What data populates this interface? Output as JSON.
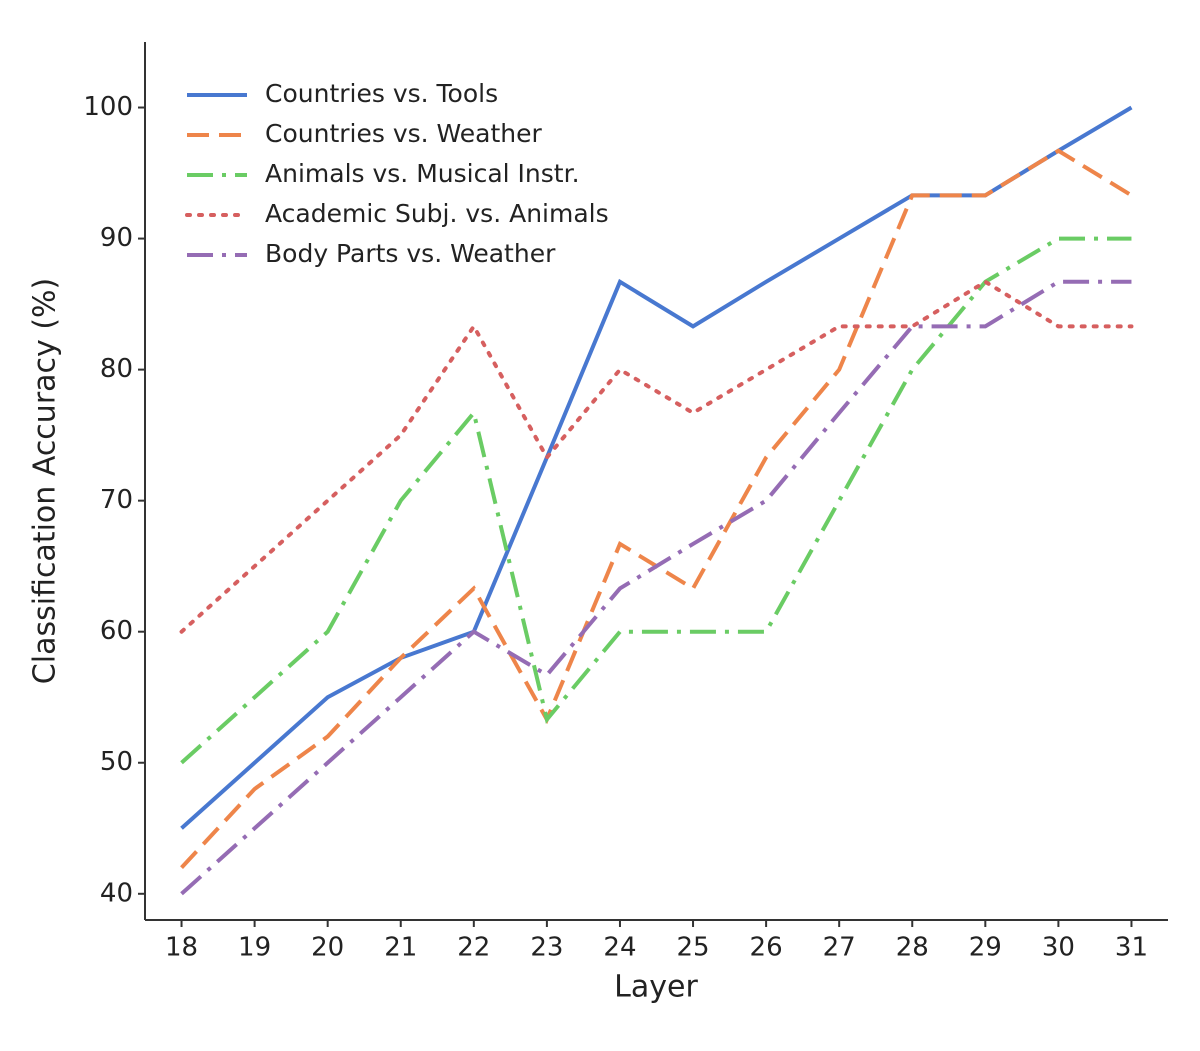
{
  "chart_data": {
    "type": "line",
    "xlabel": "Layer",
    "ylabel": "Classification Accuracy (%)",
    "x": [
      18,
      19,
      20,
      21,
      22,
      23,
      24,
      25,
      26,
      27,
      28,
      29,
      30,
      31
    ],
    "xlim": [
      17.5,
      31.5
    ],
    "xticks": [
      18,
      19,
      20,
      21,
      22,
      23,
      24,
      25,
      26,
      27,
      28,
      29,
      30,
      31
    ],
    "ylim": [
      38,
      105
    ],
    "yticks": [
      40,
      50,
      60,
      70,
      80,
      90,
      100
    ],
    "legend": "upper left",
    "series": [
      {
        "name": "Countries vs. Tools",
        "color": "#4878d0",
        "linestyle": "solid",
        "values": [
          45,
          50,
          55,
          58,
          60,
          73.3,
          86.7,
          83.3,
          86.7,
          90,
          93.3,
          93.3,
          96.7,
          100
        ]
      },
      {
        "name": "Countries vs. Weather",
        "color": "#ee854a",
        "linestyle": "dashed",
        "values": [
          42,
          48,
          52,
          58,
          63.3,
          53.3,
          66.7,
          63.3,
          73.3,
          80,
          93.3,
          93.3,
          96.7,
          93.3
        ]
      },
      {
        "name": "Animals vs. Musical Instr.",
        "color": "#6acc64",
        "linestyle": "dashdot",
        "values": [
          50,
          55,
          60,
          70,
          76.7,
          53.3,
          60,
          60,
          60,
          70,
          80,
          86.7,
          90,
          90
        ]
      },
      {
        "name": "Academic Subj. vs. Animals",
        "color": "#d65f5f",
        "linestyle": "dotted",
        "values": [
          60,
          65,
          70,
          75,
          83.3,
          73.3,
          80,
          76.7,
          80,
          83.3,
          83.3,
          86.7,
          83.3,
          83.3
        ]
      },
      {
        "name": "Body Parts vs. Weather",
        "color": "#956cb4",
        "linestyle": "dashdot",
        "values": [
          40,
          45,
          50,
          55,
          60,
          56.7,
          63.3,
          66.7,
          70,
          76.7,
          83.3,
          83.3,
          86.7,
          86.7
        ]
      }
    ]
  }
}
